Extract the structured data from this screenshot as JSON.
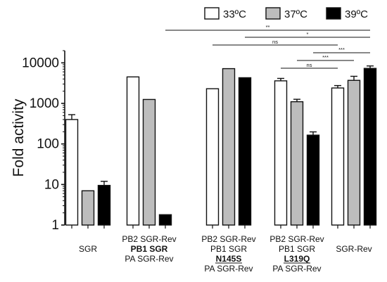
{
  "chart_data": {
    "type": "bar",
    "ylabel": "Fold activity",
    "yscale": "log",
    "ylim": [
      1,
      20000
    ],
    "yticks": [
      "1",
      "10",
      "100",
      "1000",
      "10000"
    ],
    "series": [
      {
        "name": "33ºC",
        "color": "#ffffff",
        "values": [
          400,
          4500,
          2300,
          3600,
          2400
        ]
      },
      {
        "name": "37ºC",
        "color": "#bdbdbd",
        "values": [
          7,
          1250,
          7200,
          1100,
          3700
        ]
      },
      {
        "name": "39ºC",
        "color": "#000000",
        "values": [
          9.5,
          1.8,
          4300,
          165,
          7300
        ]
      }
    ],
    "errors": [
      [
        0.12,
        0.0,
        0.0,
        0.06,
        0.06
      ],
      [
        0.0,
        0.0,
        0.0,
        0.06,
        0.1
      ],
      [
        0.1,
        0.0,
        0.0,
        0.08,
        0.06
      ]
    ],
    "groups": [
      {
        "lines": [
          {
            "text": "SGR",
            "style": "normal"
          }
        ]
      },
      {
        "lines": [
          {
            "text": "PB2 SGR-Rev",
            "style": "normal"
          },
          {
            "text": "PB1 SGR",
            "style": "bold"
          },
          {
            "text": "PA SGR-Rev",
            "style": "normal"
          }
        ]
      },
      {
        "lines": [
          {
            "text": "PB2 SGR-Rev",
            "style": "normal"
          },
          {
            "text": "PB1 SGR",
            "style": "normal"
          },
          {
            "text": "N145S",
            "style": "bold-underline"
          },
          {
            "text": "PA SGR-Rev",
            "style": "normal"
          }
        ]
      },
      {
        "lines": [
          {
            "text": "PB2 SGR-Rev",
            "style": "normal"
          },
          {
            "text": "PB1 SGR",
            "style": "normal"
          },
          {
            "text": "L319Q",
            "style": "bold-underline"
          },
          {
            "text": "PA SGR-Rev",
            "style": "normal"
          }
        ]
      },
      {
        "lines": [
          {
            "text": "SGR-Rev",
            "style": "normal"
          }
        ]
      }
    ],
    "significance": [
      {
        "label": "**",
        "from": {
          "group": 1,
          "series": 2
        },
        "to": {
          "group": 4,
          "series": 2
        }
      },
      {
        "label": "*",
        "from": {
          "group": 2,
          "series": 2
        },
        "to": {
          "group": 4,
          "series": 2
        }
      },
      {
        "label": "ns",
        "from": {
          "group": 2,
          "series": 0
        },
        "to": {
          "group": 4,
          "series": 0
        }
      },
      {
        "label": "***",
        "from": {
          "group": 3,
          "series": 2
        },
        "to": {
          "group": 4,
          "series": 2
        }
      },
      {
        "label": "***",
        "from": {
          "group": 3,
          "series": 1
        },
        "to": {
          "group": 4,
          "series": 1
        }
      },
      {
        "label": "ns",
        "from": {
          "group": 3,
          "series": 0
        },
        "to": {
          "group": 4,
          "series": 0
        }
      }
    ]
  }
}
